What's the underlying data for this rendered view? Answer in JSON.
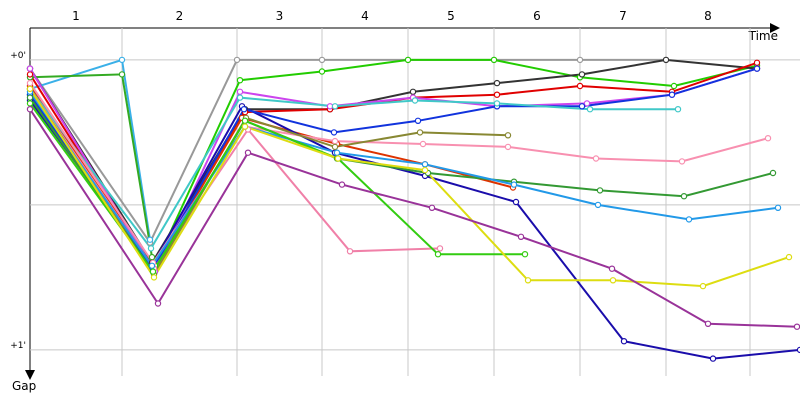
{
  "chart_data": {
    "type": "line",
    "x_label": "Time",
    "y_label": "Gap",
    "xlim": [
      0,
      770
    ],
    "ylim": [
      -0.11,
      1.09
    ],
    "y_reversed": true,
    "yticks": [
      {
        "value": 0,
        "label": "+0'"
      },
      {
        "value": 0.5,
        "label": null
      },
      {
        "value": 1,
        "label": "+1'"
      }
    ],
    "laps": [
      "1",
      "2",
      "3",
      "4",
      "5",
      "6",
      "7",
      "8"
    ],
    "lap_ends": [
      92,
      207,
      292,
      378,
      464,
      550,
      636,
      720
    ],
    "series": [
      {
        "color": "#999999",
        "x": [
          0,
          120,
          207,
          292,
          378,
          464,
          550,
          636
        ],
        "values": [
          0.03,
          0.63,
          0,
          0,
          0,
          0,
          0,
          0
        ]
      },
      {
        "color": "#3ab0e8",
        "x": [
          0,
          92,
          120
        ],
        "values": [
          0.1,
          0,
          0.62
        ]
      },
      {
        "color": "#33aa22",
        "x": [
          0,
          92,
          122
        ],
        "values": [
          0.06,
          0.05,
          0.68
        ]
      },
      {
        "color": "#22cc00",
        "x": [
          0,
          125,
          210,
          292,
          378,
          464,
          550,
          644,
          727
        ],
        "values": [
          0.12,
          0.71,
          0.07,
          0.04,
          0,
          0,
          0.06,
          0.09,
          0.02
        ]
      },
      {
        "color": "#333333",
        "x": [
          0,
          122,
          215,
          300,
          383,
          467,
          552,
          636,
          727
        ],
        "values": [
          0.03,
          0.7,
          0.17,
          0.17,
          0.11,
          0.08,
          0.05,
          0,
          0.03
        ]
      },
      {
        "color": "#e00000",
        "x": [
          0,
          123,
          215,
          300,
          383,
          467,
          550,
          642,
          727
        ],
        "values": [
          0.05,
          0.72,
          0.18,
          0.17,
          0.13,
          0.12,
          0.09,
          0.11,
          0.01
        ]
      },
      {
        "color": "#dd3300",
        "x": [
          0,
          124,
          212,
          307,
          395,
          483
        ],
        "values": [
          0.09,
          0.72,
          0.2,
          0.29,
          0.36,
          0.44
        ]
      },
      {
        "color": "#cc44ee",
        "x": [
          0,
          125,
          210,
          300,
          383,
          467,
          557,
          642,
          727
        ],
        "values": [
          0.03,
          0.73,
          0.11,
          0.16,
          0.13,
          0.16,
          0.15,
          0.12,
          0.03
        ]
      },
      {
        "color": "#1a0dab",
        "x": [
          0,
          122,
          212,
          305,
          395,
          486,
          594,
          683,
          770
        ],
        "values": [
          0.14,
          0.71,
          0.16,
          0.32,
          0.4,
          0.49,
          0.97,
          1.03,
          1.0
        ]
      },
      {
        "color": "#1133dd",
        "x": [
          0,
          123,
          214,
          304,
          388,
          467,
          552,
          642,
          727
        ],
        "values": [
          0.12,
          0.72,
          0.17,
          0.25,
          0.21,
          0.16,
          0.16,
          0.12,
          0.03
        ]
      },
      {
        "color": "#40c8c8",
        "x": [
          0,
          121,
          210,
          305,
          385,
          467,
          560,
          648
        ],
        "values": [
          0.1,
          0.65,
          0.13,
          0.16,
          0.14,
          0.15,
          0.17,
          0.17
        ]
      },
      {
        "color": "#f080a8",
        "x": [
          0,
          124,
          218,
          320,
          410
        ],
        "values": [
          0.1,
          0.72,
          0.24,
          0.66,
          0.65
        ]
      },
      {
        "color": "#f890b0",
        "x": [
          0,
          123,
          215,
          305,
          393,
          478,
          566,
          652,
          738
        ],
        "values": [
          0.08,
          0.7,
          0.23,
          0.28,
          0.29,
          0.3,
          0.34,
          0.35,
          0.27
        ]
      },
      {
        "color": "#888833",
        "x": [
          0,
          124,
          216,
          305,
          390,
          478
        ],
        "values": [
          0.1,
          0.74,
          0.2,
          0.3,
          0.25,
          0.26
        ]
      },
      {
        "color": "#339933",
        "x": [
          0,
          123,
          215,
          307,
          398,
          484,
          570,
          654,
          743
        ],
        "values": [
          0.13,
          0.73,
          0.21,
          0.34,
          0.39,
          0.42,
          0.45,
          0.47,
          0.39
        ]
      },
      {
        "color": "#2299e8",
        "x": [
          0,
          122,
          215,
          307,
          395,
          484,
          568,
          659,
          748
        ],
        "values": [
          0.11,
          0.71,
          0.23,
          0.32,
          0.36,
          0.43,
          0.5,
          0.55,
          0.51
        ]
      },
      {
        "color": "#33cc11",
        "x": [
          0,
          123,
          215,
          308,
          408,
          495
        ],
        "values": [
          0.15,
          0.73,
          0.21,
          0.34,
          0.67,
          0.67
        ]
      },
      {
        "color": "#dddd11",
        "x": [
          0,
          124,
          215,
          308,
          395,
          498,
          583,
          673,
          759
        ],
        "values": [
          0.1,
          0.75,
          0.23,
          0.34,
          0.38,
          0.76,
          0.76,
          0.78,
          0.68
        ]
      },
      {
        "color": "#993399",
        "x": [
          0,
          128,
          218,
          312,
          402,
          491,
          582,
          678,
          767
        ],
        "values": [
          0.17,
          0.84,
          0.32,
          0.43,
          0.51,
          0.61,
          0.72,
          0.91,
          0.92
        ]
      }
    ]
  }
}
